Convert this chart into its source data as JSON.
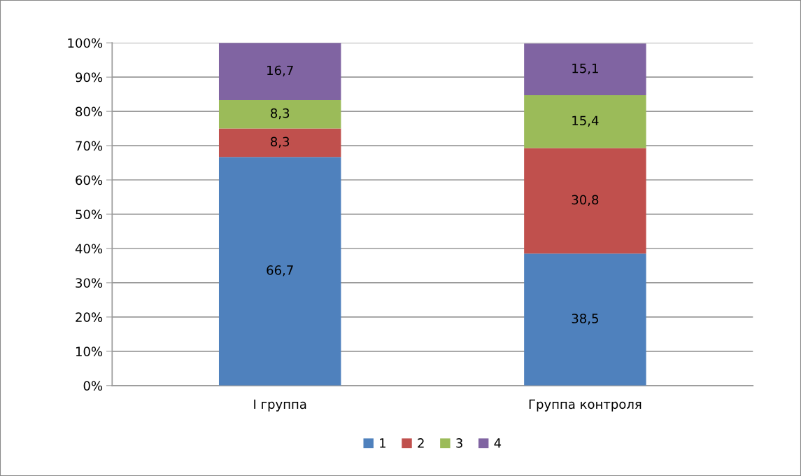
{
  "chart_data": {
    "type": "bar",
    "stacked": true,
    "categories": [
      "I группа",
      "Группа контроля"
    ],
    "series": [
      {
        "name": "1",
        "color": "#4f81bd",
        "values": [
          66.7,
          38.5
        ],
        "value_labels": [
          "66,7",
          "38,5"
        ]
      },
      {
        "name": "2",
        "color": "#c0504d",
        "values": [
          8.3,
          30.8
        ],
        "value_labels": [
          "8,3",
          "30,8"
        ]
      },
      {
        "name": "3",
        "color": "#9bbb59",
        "values": [
          8.3,
          15.4
        ],
        "value_labels": [
          "8,3",
          "15,4"
        ]
      },
      {
        "name": "4",
        "color": "#8064a2",
        "values": [
          16.7,
          15.1
        ],
        "value_labels": [
          "16,7",
          "15,1"
        ]
      }
    ],
    "ylim": [
      0,
      100
    ],
    "yticks": [
      {
        "value": 0,
        "label": "0%"
      },
      {
        "value": 10,
        "label": "10%"
      },
      {
        "value": 20,
        "label": "20%"
      },
      {
        "value": 30,
        "label": "30%"
      },
      {
        "value": 40,
        "label": "40%"
      },
      {
        "value": 50,
        "label": "50%"
      },
      {
        "value": 60,
        "label": "60%"
      },
      {
        "value": 70,
        "label": "70%"
      },
      {
        "value": 80,
        "label": "80%"
      },
      {
        "value": 90,
        "label": "90%"
      },
      {
        "value": 100,
        "label": "100%"
      }
    ],
    "grid": "y",
    "legend": "bottom"
  }
}
